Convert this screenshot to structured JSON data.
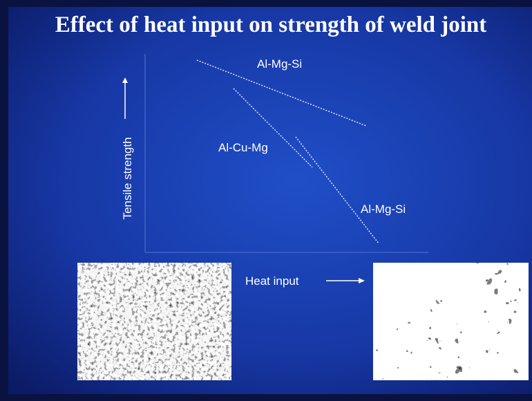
{
  "title": "Effect of heat input on strength of weld joint",
  "y_axis_label": "Tensile strength",
  "x_axis_label": "Heat input",
  "curves": [
    {
      "label": "Al-Mg-Si"
    },
    {
      "label": "Al-Cu-Mg"
    },
    {
      "label": "Al-Mg-Si"
    }
  ]
}
